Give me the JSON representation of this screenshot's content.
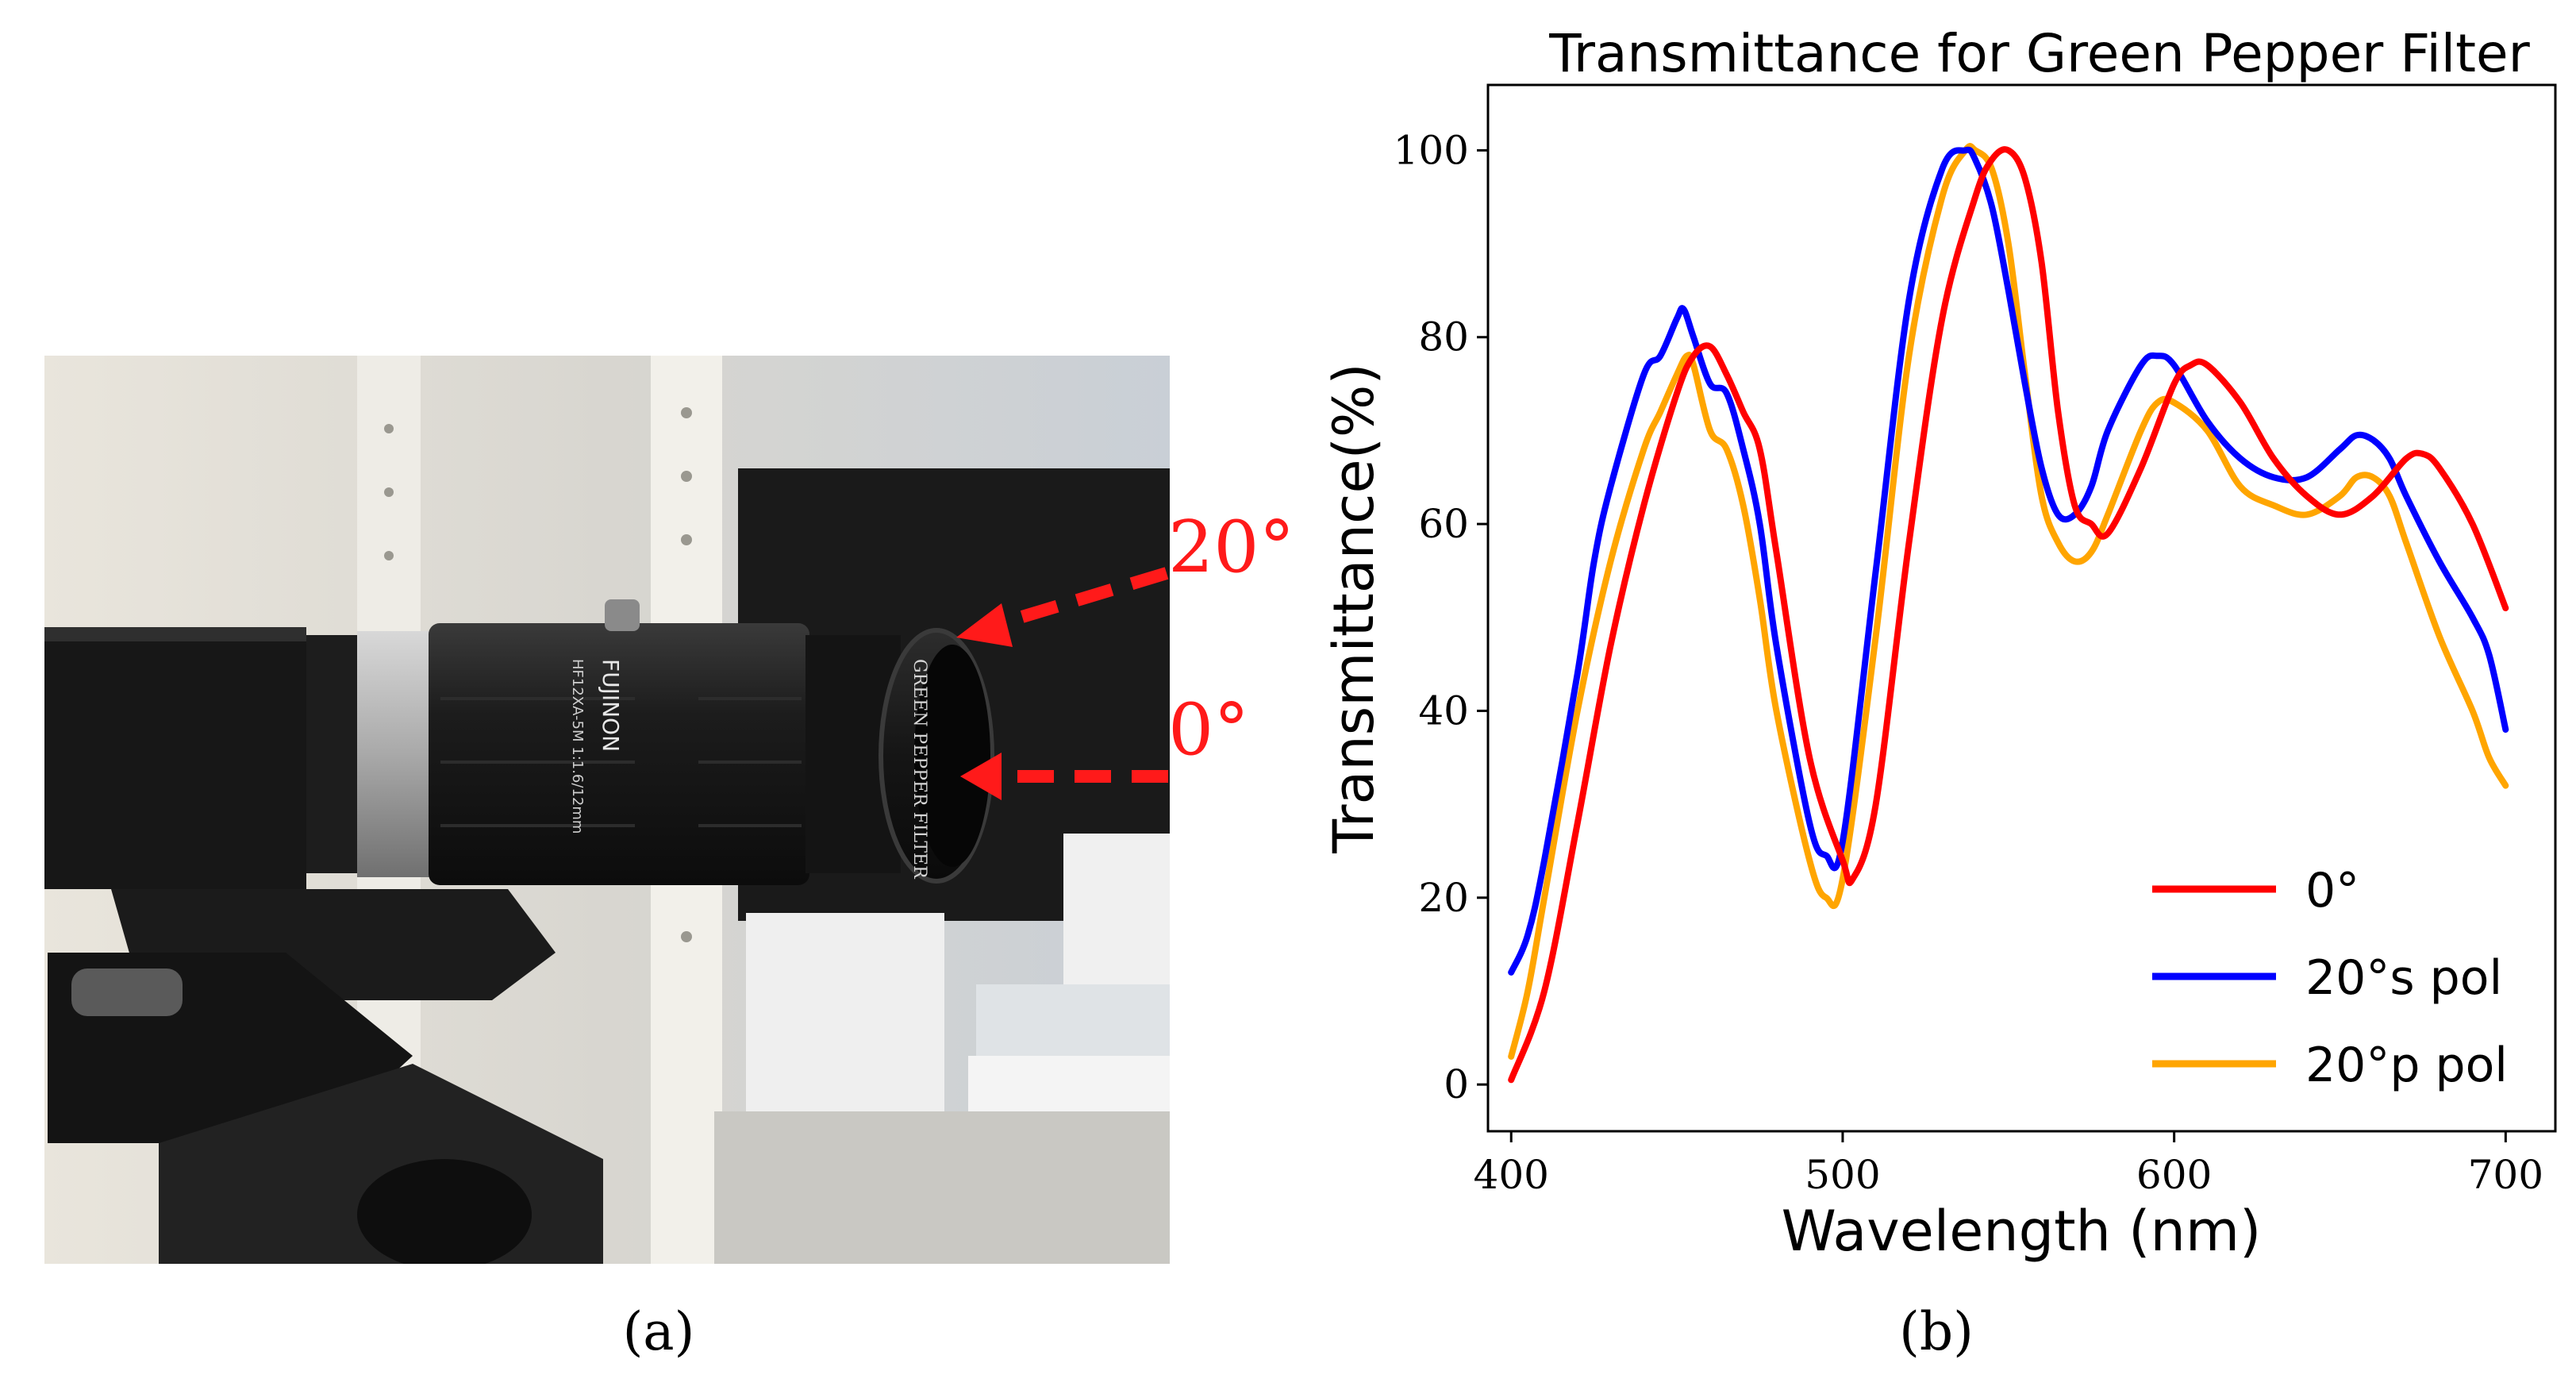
{
  "panels": {
    "a_label": "(a)",
    "b_label": "(b)"
  },
  "photo": {
    "description_labels": {
      "angle_top": "20°",
      "angle_bottom": "0°",
      "lens_brand": "FUJINON",
      "lens_model": "HF12XA-5M  1:1.6/12mm",
      "filter_text": "GREEN PEPPER FILTER"
    },
    "arrow_color": "#ff1a1a"
  },
  "chart_data": {
    "type": "line",
    "title": "Transmittance for Green Pepper Filter",
    "xlabel": "Wavelength (nm)",
    "ylabel": "Transmittance(%)",
    "xlim": [
      393,
      715
    ],
    "ylim": [
      -5,
      107
    ],
    "xticks": [
      400,
      500,
      600,
      700
    ],
    "yticks": [
      0,
      20,
      40,
      60,
      80,
      100
    ],
    "legend_position": "lower-right",
    "series": [
      {
        "name": "0°",
        "color": "#ff0000",
        "x": [
          400,
          410,
          420,
          430,
          440,
          450,
          455,
          460,
          465,
          470,
          475,
          480,
          490,
          500,
          503,
          510,
          520,
          530,
          540,
          545,
          550,
          555,
          560,
          565,
          570,
          575,
          580,
          590,
          600,
          605,
          610,
          620,
          630,
          640,
          650,
          660,
          670,
          675,
          680,
          690,
          700
        ],
        "y": [
          0.5,
          10,
          28,
          47,
          62,
          74,
          78,
          79,
          76,
          72,
          68,
          57,
          35,
          24,
          22,
          30,
          58,
          82,
          95,
          99,
          100,
          97,
          88,
          72,
          62,
          60,
          59,
          66,
          75,
          77,
          77,
          73,
          67,
          63,
          61,
          63,
          67,
          67.5,
          66,
          60,
          51
        ]
      },
      {
        "name": "20°s pol",
        "color": "#0000ff",
        "x": [
          400,
          405,
          410,
          420,
          425,
          430,
          440,
          445,
          450,
          452,
          455,
          460,
          465,
          470,
          475,
          480,
          490,
          495,
          500,
          510,
          520,
          530,
          537,
          540,
          545,
          550,
          555,
          560,
          565,
          570,
          575,
          580,
          590,
          595,
          600,
          610,
          620,
          630,
          640,
          650,
          655,
          660,
          665,
          670,
          680,
          690,
          695,
          700
        ],
        "y": [
          12,
          16,
          24,
          44,
          56,
          64,
          76,
          78,
          82,
          83,
          80,
          75,
          74,
          68,
          60,
          47,
          28,
          24.5,
          26,
          55,
          84,
          98,
          100,
          99,
          94,
          85,
          75,
          66,
          61,
          61,
          64,
          70,
          77,
          78,
          77,
          71,
          67,
          65,
          65,
          68,
          69.5,
          69,
          67,
          63,
          56,
          50,
          46,
          38
        ]
      },
      {
        "name": "20°p pol",
        "color": "#ffa500",
        "x": [
          400,
          405,
          410,
          420,
          430,
          440,
          445,
          450,
          453,
          455,
          460,
          465,
          470,
          475,
          480,
          490,
          495,
          500,
          510,
          520,
          530,
          537,
          540,
          545,
          550,
          555,
          560,
          565,
          570,
          575,
          580,
          590,
          595,
          600,
          610,
          620,
          630,
          640,
          650,
          655,
          660,
          665,
          670,
          680,
          690,
          695,
          700
        ],
        "y": [
          3,
          10,
          20,
          40,
          56,
          68,
          72,
          76,
          78,
          77,
          70,
          68,
          62,
          52,
          40,
          24,
          20,
          22,
          48,
          78,
          95,
          100,
          100,
          98,
          90,
          76,
          63,
          58,
          56,
          57,
          61,
          70,
          73,
          73,
          70,
          64,
          62,
          61,
          63,
          65,
          65,
          63,
          58,
          48,
          40,
          35,
          32
        ]
      }
    ]
  }
}
